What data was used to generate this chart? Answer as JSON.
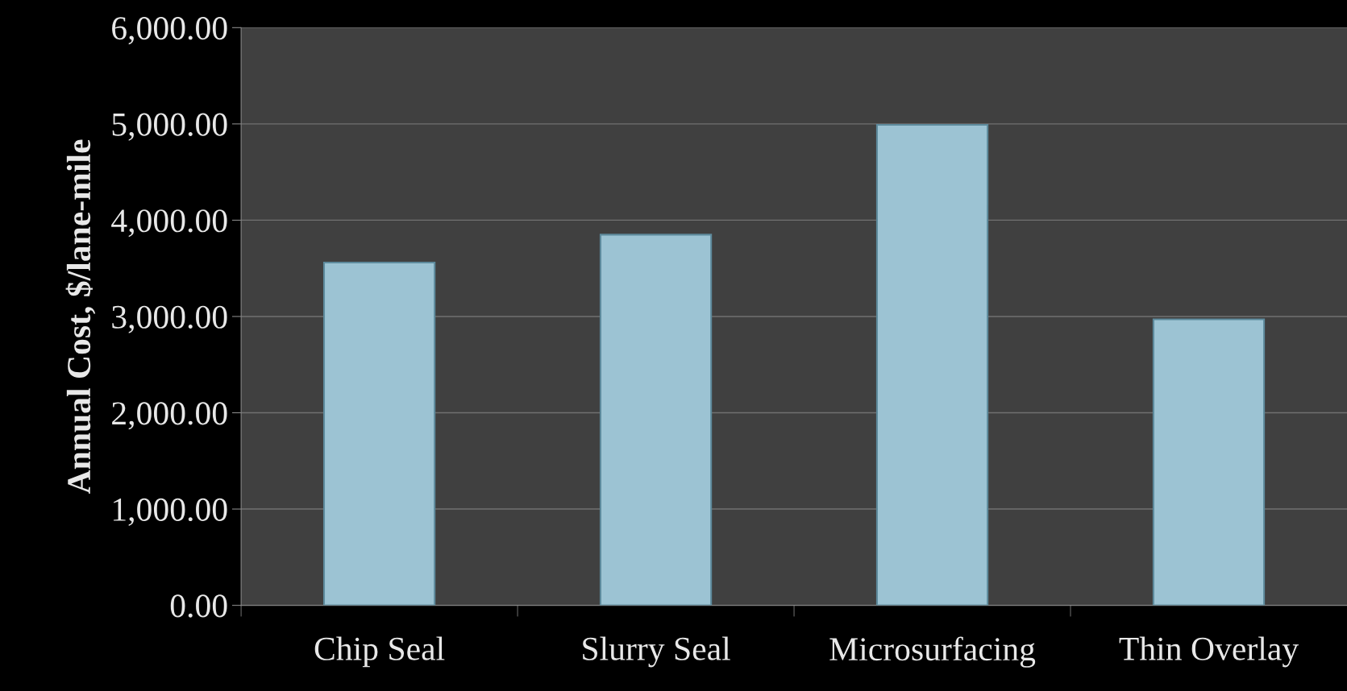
{
  "chart_data": {
    "type": "bar",
    "ylabel": "Annual Cost, $/lane-mile",
    "categories": [
      "Chip Seal",
      "Slurry Seal",
      "Microsurfacing",
      "Thin Overlay"
    ],
    "values": [
      3560,
      3850,
      4990,
      2970
    ],
    "color": "#9cc3d3",
    "ylim": [
      0,
      6000
    ],
    "yticks": [
      {
        "value": 0,
        "label": "0.00"
      },
      {
        "value": 1000,
        "label": "1,000.00"
      },
      {
        "value": 2000,
        "label": "2,000.00"
      },
      {
        "value": 3000,
        "label": "3,000.00"
      },
      {
        "value": 4000,
        "label": "4,000.00"
      },
      {
        "value": 5000,
        "label": "5,000.00"
      },
      {
        "value": 6000,
        "label": "6,000.00"
      }
    ],
    "grid": "y"
  }
}
